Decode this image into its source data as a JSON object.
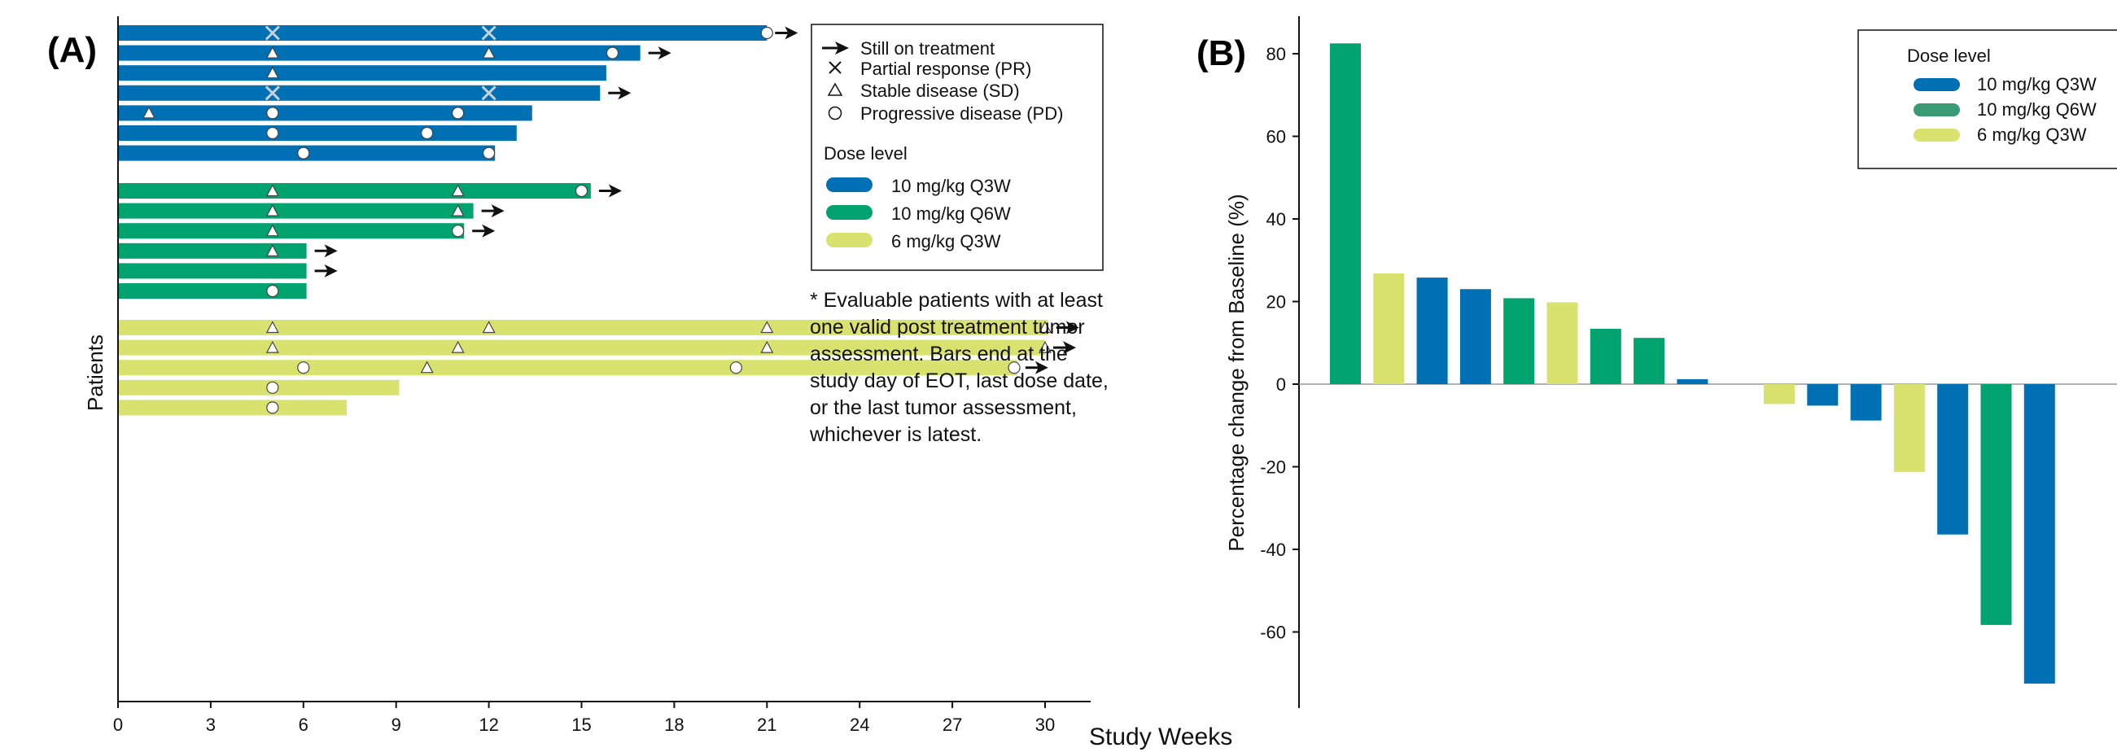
{
  "colors": {
    "q3w_10": "#0070b4",
    "q6w_10": "#00a26e",
    "q3w_6": "#d9e26e",
    "axis": "#111111"
  },
  "panel_a": {
    "label": "(A)",
    "ylabel": "Patients",
    "xlabel": "Study Weeks",
    "legend": {
      "markers": [
        {
          "symbol": "arrow",
          "label": "Still on treatment"
        },
        {
          "symbol": "x",
          "label": "Partial response (PR)"
        },
        {
          "symbol": "triangle",
          "label": "Stable disease (SD)"
        },
        {
          "symbol": "circle",
          "label": "Progressive disease (PD)"
        }
      ],
      "dose_title": "Dose level",
      "doses": [
        {
          "key": "q3w_10",
          "label": "10 mg/kg Q3W"
        },
        {
          "key": "q6w_10",
          "label": "10 mg/kg Q6W"
        },
        {
          "key": "q3w_6",
          "label": "6 mg/kg Q3W"
        }
      ]
    },
    "note_lines": [
      "* Evaluable patients with at least",
      "one valid post treatment tumor",
      "assessment. Bars end at the",
      "study day of EOT, last dose date,",
      "or the last tumor assessment,",
      "whichever is latest."
    ]
  },
  "panel_b": {
    "label": "(B)",
    "ylabel": "Percentage change from Baseline (%)",
    "legend_title": "Dose level"
  },
  "chart_data": [
    {
      "type": "bar",
      "orientation": "horizontal",
      "title": "",
      "xlabel": "Study Weeks",
      "ylabel": "Patients",
      "xlim": [
        0,
        31
      ],
      "xticks": [
        0,
        3,
        6,
        9,
        12,
        15,
        18,
        21,
        24,
        27,
        30
      ],
      "grid": false,
      "series": [
        {
          "name": "10 mg/kg Q3W",
          "dose": "q3w_10"
        },
        {
          "name": "10 mg/kg Q6W",
          "dose": "q6w_10"
        },
        {
          "name": "6 mg/kg Q3W",
          "dose": "q3w_6"
        }
      ],
      "patients": [
        {
          "dose": "q3w_10",
          "weeks": 21,
          "ongoing": true,
          "markers": [
            [
              "x",
              5
            ],
            [
              "x",
              12
            ],
            [
              "circle",
              21
            ]
          ]
        },
        {
          "dose": "q3w_10",
          "weeks": 16.9,
          "ongoing": true,
          "markers": [
            [
              "triangle",
              5
            ],
            [
              "triangle",
              12
            ],
            [
              "circle",
              16
            ]
          ]
        },
        {
          "dose": "q3w_10",
          "weeks": 15.8,
          "ongoing": false,
          "markers": [
            [
              "triangle",
              5
            ]
          ]
        },
        {
          "dose": "q3w_10",
          "weeks": 15.6,
          "ongoing": true,
          "markers": [
            [
              "x",
              5
            ],
            [
              "x",
              12
            ]
          ]
        },
        {
          "dose": "q3w_10",
          "weeks": 13.4,
          "ongoing": false,
          "markers": [
            [
              "triangle",
              1
            ],
            [
              "circle",
              5
            ],
            [
              "circle",
              11
            ]
          ]
        },
        {
          "dose": "q3w_10",
          "weeks": 12.9,
          "ongoing": false,
          "markers": [
            [
              "circle",
              5
            ],
            [
              "circle",
              10
            ]
          ]
        },
        {
          "dose": "q3w_10",
          "weeks": 12.2,
          "ongoing": false,
          "markers": [
            [
              "circle",
              6
            ],
            [
              "circle",
              12
            ]
          ]
        },
        {
          "dose": "q6w_10",
          "weeks": 15.3,
          "ongoing": true,
          "markers": [
            [
              "triangle",
              5
            ],
            [
              "triangle",
              11
            ],
            [
              "circle",
              15
            ]
          ]
        },
        {
          "dose": "q6w_10",
          "weeks": 11.5,
          "ongoing": true,
          "markers": [
            [
              "triangle",
              5
            ],
            [
              "triangle",
              11
            ]
          ]
        },
        {
          "dose": "q6w_10",
          "weeks": 11.2,
          "ongoing": true,
          "markers": [
            [
              "triangle",
              5
            ],
            [
              "circle",
              11
            ]
          ]
        },
        {
          "dose": "q6w_10",
          "weeks": 6.1,
          "ongoing": true,
          "markers": [
            [
              "triangle",
              5
            ]
          ]
        },
        {
          "dose": "q6w_10",
          "weeks": 6.1,
          "ongoing": true,
          "markers": []
        },
        {
          "dose": "q6w_10",
          "weeks": 6.1,
          "ongoing": false,
          "markers": [
            [
              "circle",
              5
            ]
          ]
        },
        {
          "dose": "q3w_6",
          "weeks": 30.1,
          "ongoing": true,
          "markers": [
            [
              "triangle",
              5
            ],
            [
              "triangle",
              12
            ],
            [
              "triangle",
              21
            ],
            [
              "triangle",
              30
            ]
          ]
        },
        {
          "dose": "q3w_6",
          "weeks": 30.0,
          "ongoing": true,
          "markers": [
            [
              "triangle",
              5
            ],
            [
              "triangle",
              11
            ],
            [
              "triangle",
              21
            ],
            [
              "triangle",
              30
            ]
          ]
        },
        {
          "dose": "q3w_6",
          "weeks": 29.1,
          "ongoing": true,
          "markers": [
            [
              "circle",
              6
            ],
            [
              "triangle",
              10
            ],
            [
              "circle",
              20
            ],
            [
              "circle",
              29
            ]
          ]
        },
        {
          "dose": "q3w_6",
          "weeks": 9.1,
          "ongoing": false,
          "markers": [
            [
              "circle",
              5
            ]
          ]
        },
        {
          "dose": "q3w_6",
          "weeks": 7.4,
          "ongoing": false,
          "markers": [
            [
              "circle",
              5
            ]
          ]
        }
      ]
    },
    {
      "type": "bar",
      "title": "",
      "xlabel": "",
      "ylabel": "Percentage change from Baseline (%)",
      "ylim": [
        -78,
        88
      ],
      "yticks": [
        80,
        60,
        40,
        20,
        0,
        -20,
        -40,
        -60
      ],
      "grid": false,
      "legend_placement": "top-right",
      "legend": [
        "10 mg/kg Q3W",
        "10 mg/kg Q6W",
        "6 mg/kg Q3W"
      ],
      "bars": [
        {
          "dose": "q6w_10",
          "value": 82.5
        },
        {
          "dose": "q3w_6",
          "value": 26.8
        },
        {
          "dose": "q3w_10",
          "value": 25.8
        },
        {
          "dose": "q3w_10",
          "value": 23.0
        },
        {
          "dose": "q6w_10",
          "value": 20.8
        },
        {
          "dose": "q3w_6",
          "value": 19.8
        },
        {
          "dose": "q6w_10",
          "value": 13.4
        },
        {
          "dose": "q6w_10",
          "value": 11.2
        },
        {
          "dose": "q3w_10",
          "value": 1.2
        },
        {
          "dose": "q3w_10",
          "value": 0
        },
        {
          "dose": "q3w_6",
          "value": -4.8
        },
        {
          "dose": "q3w_10",
          "value": -5.2
        },
        {
          "dose": "q3w_10",
          "value": -8.8
        },
        {
          "dose": "q3w_6",
          "value": -21.3
        },
        {
          "dose": "q3w_10",
          "value": -36.4
        },
        {
          "dose": "q6w_10",
          "value": -58.3
        },
        {
          "dose": "q3w_10",
          "value": -72.5
        }
      ]
    }
  ]
}
